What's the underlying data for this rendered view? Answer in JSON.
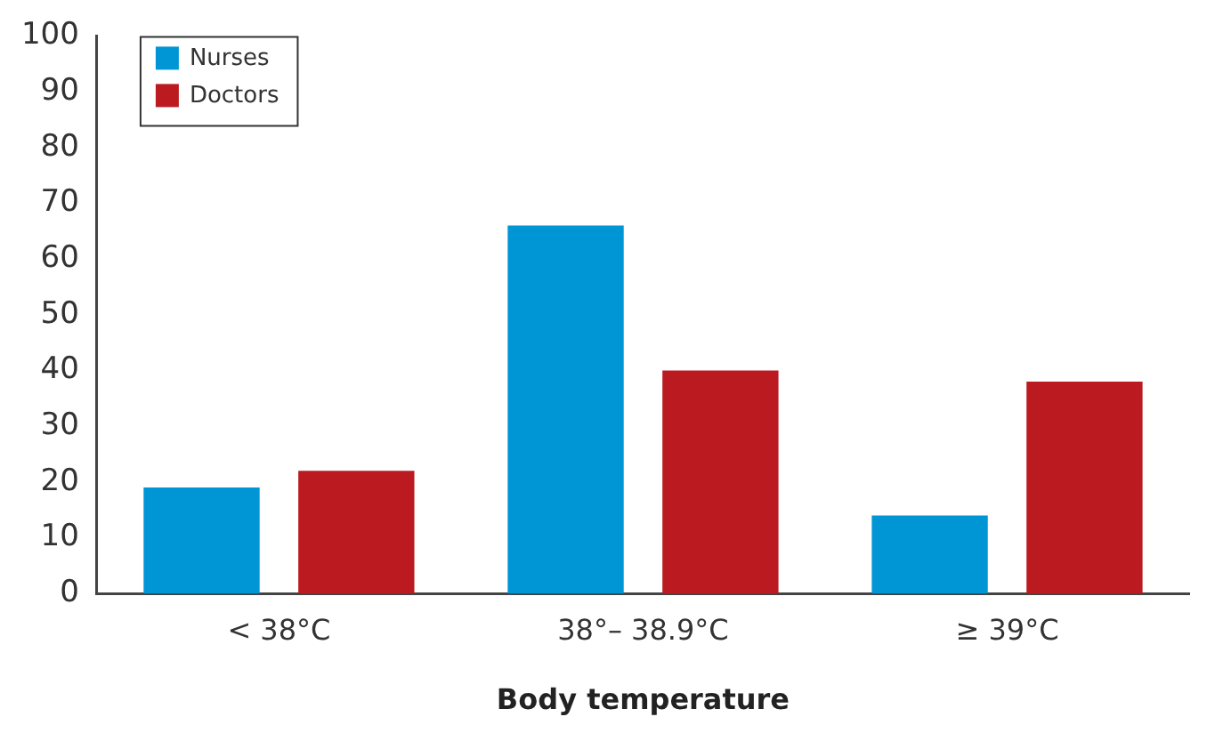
{
  "chart_data": {
    "type": "bar",
    "xlabel": "Body temperature",
    "categories": [
      "< 38°C",
      "38°– 38.9°C",
      "≥ 39°C"
    ],
    "series": [
      {
        "name": "Nurses",
        "color": "#0096d6",
        "values": [
          19,
          66,
          14
        ]
      },
      {
        "name": "Doctors",
        "color": "#bb1b20",
        "values": [
          22,
          40,
          38
        ]
      }
    ],
    "ylim": [
      0,
      100
    ],
    "yticks": [
      0,
      10,
      20,
      30,
      40,
      50,
      60,
      70,
      80,
      90,
      100
    ],
    "grid": false,
    "legend": "top left"
  }
}
